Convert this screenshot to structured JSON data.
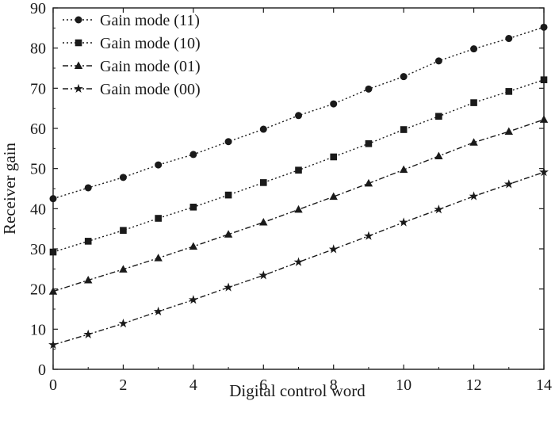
{
  "chart_data": {
    "type": "line",
    "title": "",
    "xlabel": "Digital control word",
    "ylabel": "Receiver gain",
    "xlim": [
      0,
      14
    ],
    "ylim": [
      0,
      90
    ],
    "x_ticks": [
      0,
      2,
      4,
      6,
      8,
      10,
      12,
      14
    ],
    "y_ticks": [
      0,
      10,
      20,
      30,
      40,
      50,
      60,
      70,
      80,
      90
    ],
    "grid": false,
    "legend_position": "top-left",
    "x": [
      0,
      1,
      2,
      3,
      4,
      5,
      6,
      7,
      8,
      9,
      10,
      11,
      12,
      13,
      14
    ],
    "series": [
      {
        "name": "Gain mode (11)",
        "marker": "circle",
        "line_style": "dotted",
        "color": "#1a1a1a",
        "values": [
          42.5,
          45.2,
          47.8,
          50.9,
          53.5,
          56.7,
          59.8,
          63.2,
          66.1,
          69.8,
          72.9,
          76.8,
          79.8,
          82.4,
          85.2
        ]
      },
      {
        "name": "Gain mode (10)",
        "marker": "square",
        "line_style": "dotted",
        "color": "#1a1a1a",
        "values": [
          29.2,
          31.9,
          34.6,
          37.6,
          40.4,
          43.4,
          46.5,
          49.6,
          52.9,
          56.2,
          59.7,
          63.0,
          66.4,
          69.2,
          72.1
        ]
      },
      {
        "name": "Gain mode (01)",
        "marker": "triangle",
        "line_style": "dashdot",
        "color": "#1a1a1a",
        "values": [
          19.4,
          22.2,
          24.9,
          27.7,
          30.6,
          33.6,
          36.6,
          39.8,
          43.0,
          46.3,
          49.7,
          53.1,
          56.5,
          59.2,
          62.2
        ]
      },
      {
        "name": "Gain mode (00)",
        "marker": "star",
        "line_style": "dashdot",
        "color": "#1a1a1a",
        "values": [
          6.1,
          8.7,
          11.4,
          14.4,
          17.3,
          20.4,
          23.4,
          26.7,
          29.9,
          33.2,
          36.6,
          39.8,
          43.1,
          46.1,
          49.1
        ]
      }
    ]
  }
}
